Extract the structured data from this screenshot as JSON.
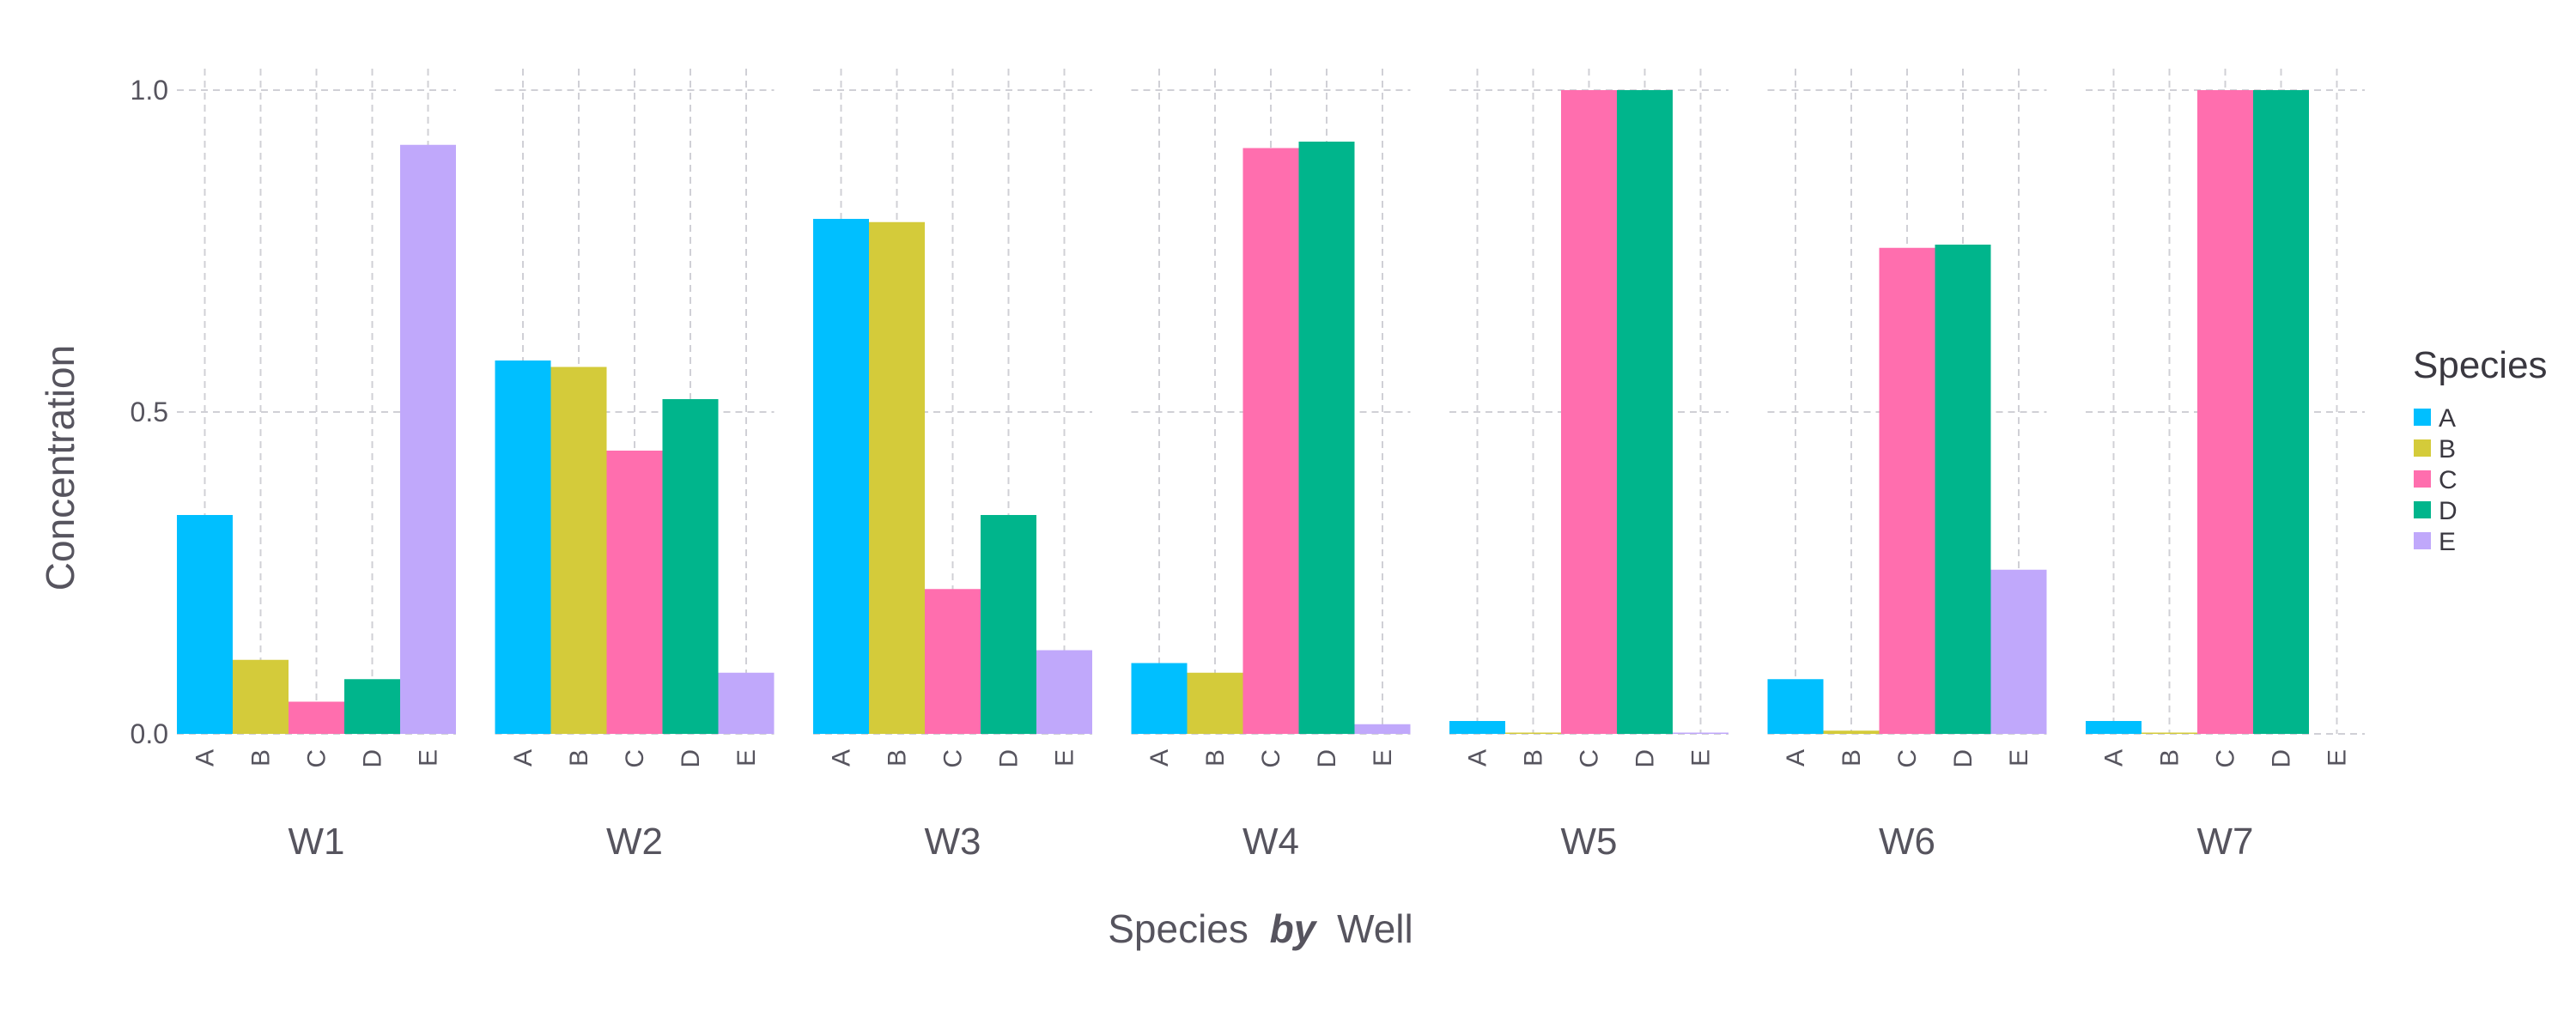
{
  "chart_data": {
    "type": "bar",
    "title": "",
    "xlabel_parts": [
      "Species",
      "by",
      "Well"
    ],
    "ylabel": "Concentration",
    "ylim": [
      0,
      1.0
    ],
    "yticks": [
      "0.0",
      "0.5",
      "1.0"
    ],
    "grid": true,
    "legend": {
      "title": "Species",
      "placement": "right"
    },
    "species": [
      "A",
      "B",
      "C",
      "D",
      "E"
    ],
    "colors": {
      "A": "#00bfff",
      "B": "#d4cb3a",
      "C": "#ff6eae",
      "D": "#00b58c",
      "E": "#c0a8fb"
    },
    "wells": [
      {
        "name": "W1",
        "values": [
          0.34,
          0.115,
          0.05,
          0.085,
          0.915
        ]
      },
      {
        "name": "W2",
        "values": [
          0.58,
          0.57,
          0.44,
          0.52,
          0.095
        ]
      },
      {
        "name": "W3",
        "values": [
          0.8,
          0.795,
          0.225,
          0.34,
          0.13
        ]
      },
      {
        "name": "W4",
        "values": [
          0.11,
          0.095,
          0.91,
          0.92,
          0.015
        ]
      },
      {
        "name": "W5",
        "values": [
          0.02,
          0.002,
          1.0,
          1.0,
          0.002
        ]
      },
      {
        "name": "W6",
        "values": [
          0.085,
          0.005,
          0.755,
          0.76,
          0.255
        ]
      },
      {
        "name": "W7",
        "values": [
          0.02,
          0.002,
          1.0,
          1.0,
          0.0
        ]
      }
    ]
  }
}
